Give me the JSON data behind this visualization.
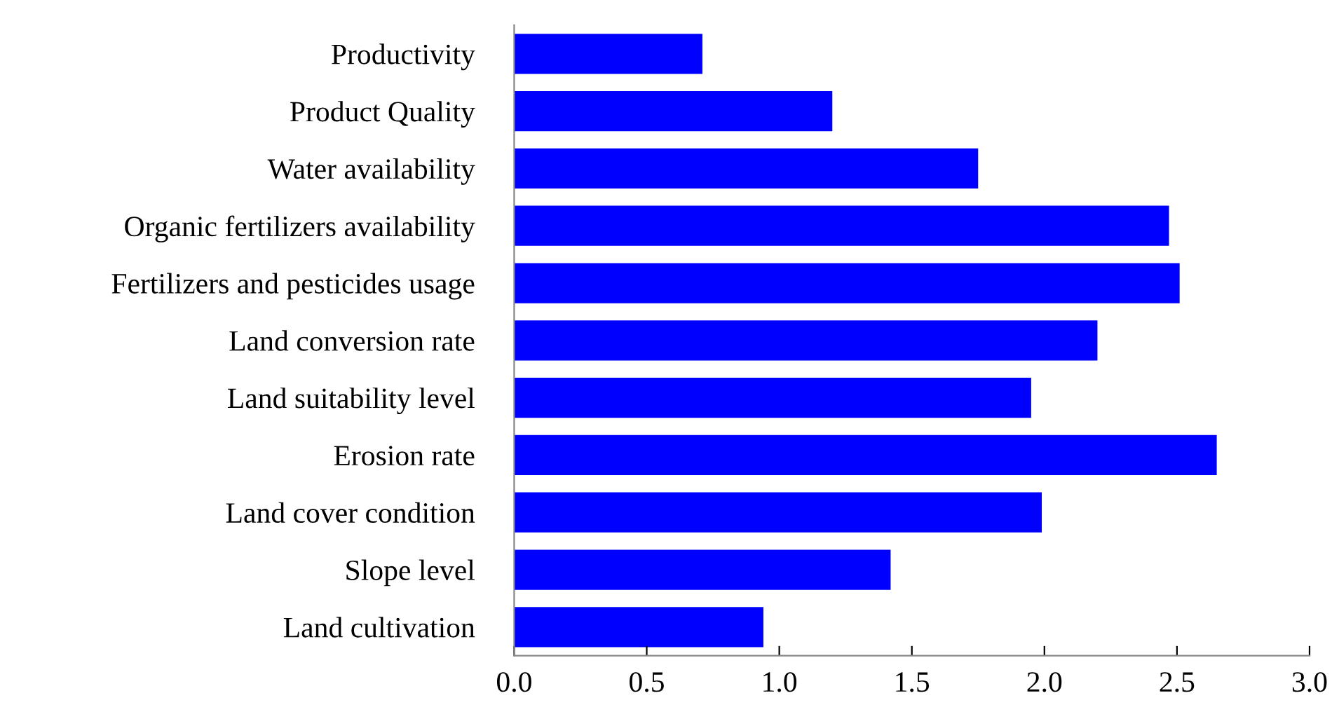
{
  "chart_data": {
    "type": "bar",
    "orientation": "horizontal",
    "categories": [
      "Productivity",
      "Product Quality",
      "Water availability",
      "Organic fertilizers availability",
      "Fertilizers and pesticides usage",
      "Land conversion rate",
      "Land suitability level",
      "Erosion rate",
      "Land cover condition",
      "Slope level",
      "Land cultivation"
    ],
    "values": [
      0.71,
      1.2,
      1.75,
      2.47,
      2.51,
      2.2,
      1.95,
      2.65,
      1.99,
      1.42,
      0.94
    ],
    "color": "#0000ff",
    "xlim": [
      0,
      3
    ],
    "xticks": [
      {
        "value": 0,
        "label": "0.0"
      },
      {
        "value": 0.5,
        "label": "0.5"
      },
      {
        "value": 1,
        "label": "1.0"
      },
      {
        "value": 1.5,
        "label": "1.5"
      },
      {
        "value": 2,
        "label": "2.0"
      },
      {
        "value": 2.5,
        "label": "2.5"
      },
      {
        "value": 3,
        "label": "3.0"
      }
    ],
    "grid": false
  }
}
